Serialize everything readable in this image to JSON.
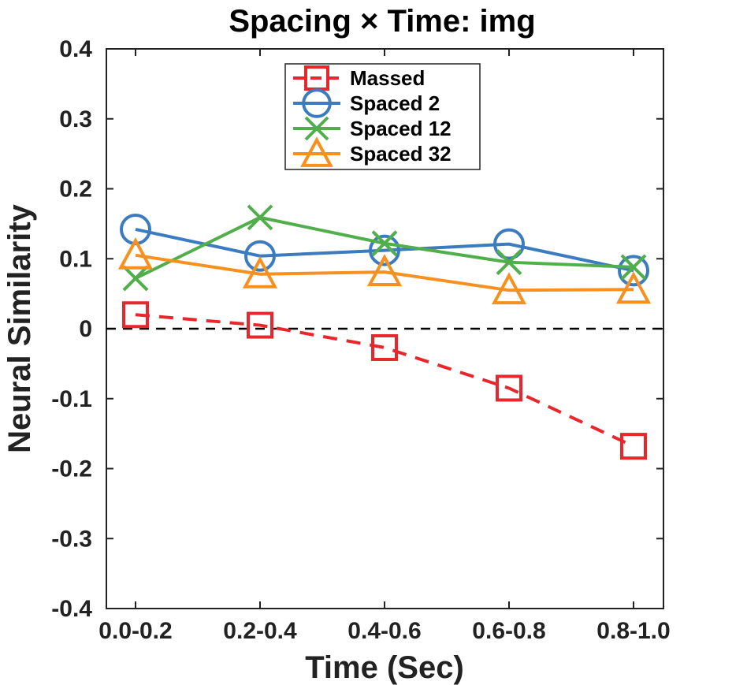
{
  "chart_data": {
    "type": "line",
    "title": "Spacing × Time: img",
    "xlabel": "Time (Sec)",
    "ylabel": "Neural Similarity",
    "categories": [
      "0.0-0.2",
      "0.2-0.4",
      "0.4-0.6",
      "0.6-0.8",
      "0.8-1.0"
    ],
    "ylim": [
      -0.4,
      0.4
    ],
    "yticks": [
      "-0.4",
      "-0.3",
      "-0.2",
      "-0.1",
      "0",
      "0.1",
      "0.2",
      "0.3",
      "0.4"
    ],
    "reference_line": {
      "y": 0,
      "style": "dashed",
      "color": "#000000"
    },
    "legend_position": "top",
    "series": [
      {
        "name": "Massed",
        "values": [
          0.02,
          0.005,
          -0.027,
          -0.085,
          -0.168
        ],
        "color": "#e8272d",
        "marker": "square",
        "line_style": "dashed"
      },
      {
        "name": "Spaced 2",
        "values": [
          0.142,
          0.104,
          0.112,
          0.121,
          0.083
        ],
        "color": "#3b7cc0",
        "marker": "circle",
        "line_style": "solid"
      },
      {
        "name": "Spaced 12",
        "values": [
          0.072,
          0.159,
          0.122,
          0.095,
          0.088
        ],
        "color": "#50af4a",
        "marker": "x",
        "line_style": "solid"
      },
      {
        "name": "Spaced 32",
        "values": [
          0.105,
          0.078,
          0.081,
          0.055,
          0.056
        ],
        "color": "#f6901e",
        "marker": "triangle",
        "line_style": "solid"
      }
    ]
  }
}
